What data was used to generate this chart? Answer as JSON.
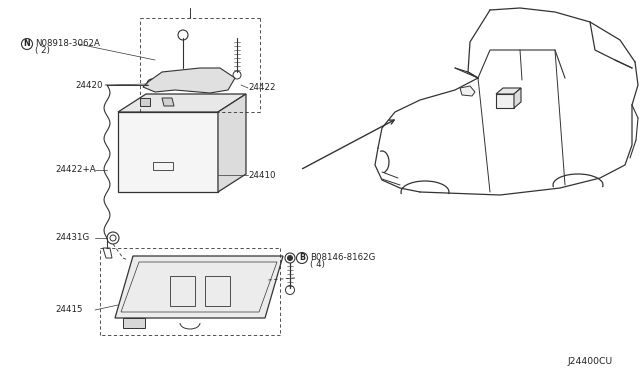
{
  "background_color": "#ffffff",
  "line_color": "#333333",
  "text_color": "#222222",
  "fig_width": 6.4,
  "fig_height": 3.72,
  "dpi": 100,
  "diagram_code": "J24400CU",
  "label_N08918": "N08918-3062A",
  "label_N08918_sub": "( 2)",
  "label_24420": "24420",
  "label_24422": "24422",
  "label_24422A": "24422+A",
  "label_24410": "24410",
  "label_24431G": "24431G",
  "label_24415": "24415",
  "label_B08146": "B08146-8162G",
  "label_B08146_sub": "( 4)"
}
